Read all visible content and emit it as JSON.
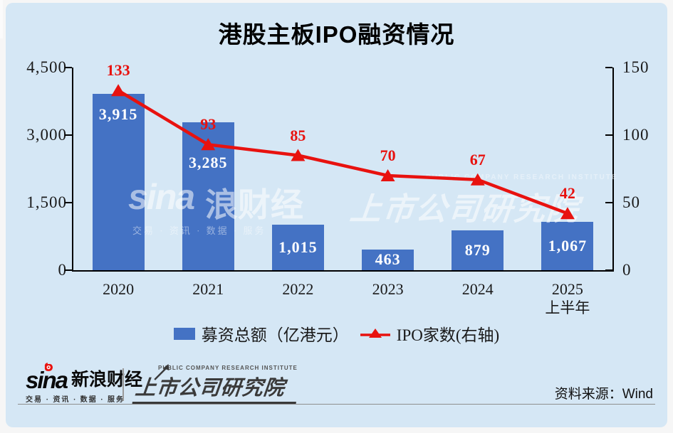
{
  "title": "港股主板IPO融资情况",
  "chart_data": {
    "type": "combo_bar_line",
    "title": "港股主板IPO融资情况",
    "categories": [
      "2020",
      "2021",
      "2022",
      "2023",
      "2024",
      "2025"
    ],
    "category_sublabels": [
      "",
      "",
      "",
      "",
      "",
      "上半年"
    ],
    "series": [
      {
        "name": "募资总额（亿港元）",
        "type": "bar",
        "axis": "left",
        "values": [
          3915,
          3285,
          1015,
          463,
          879,
          1067
        ],
        "value_labels": [
          "3,915",
          "3,285",
          "1,015",
          "463",
          "879",
          "1,067"
        ],
        "color": "#4472c4",
        "label_color": "#ffffff"
      },
      {
        "name": "IPO家数(右轴)",
        "type": "line",
        "axis": "right",
        "values": [
          133,
          93,
          85,
          70,
          67,
          42
        ],
        "value_labels": [
          "133",
          "93",
          "85",
          "70",
          "67",
          "42"
        ],
        "color": "#e8120f"
      }
    ],
    "left_axis": {
      "min": 0,
      "max": 4500,
      "tick_labels": [
        "4,500",
        "3,000",
        "1,500",
        "0"
      ]
    },
    "right_axis": {
      "min": 0,
      "max": 150,
      "tick_labels": [
        "150",
        "100",
        "50",
        "0"
      ]
    },
    "grid": false,
    "legend_position": "bottom"
  },
  "watermark": {
    "sina_word": "sina",
    "sina_cjk": "浪财经",
    "tagline": "交易 · 资讯 · 数据 · 服务",
    "institute": "上市公司研究院",
    "institute_en": "PUBLIC COMPANY RESEARCH INSTITUTE"
  },
  "footer": {
    "sina_word": "sina",
    "sina_cjk": "新浪财经",
    "sina_tagline": "交易 · 资讯 · 数据 · 服务",
    "institute_en": "PUBLIC COMPANY RESEARCH INSTITUTE",
    "institute": "上市公司研究院",
    "source": "资料来源：Wind"
  },
  "colors": {
    "background": "#d5e7f5",
    "bar_blue": "#4472c4",
    "line_red": "#e8120f",
    "axis_black": "#000000",
    "institute_gray": "#3a3a3a"
  }
}
